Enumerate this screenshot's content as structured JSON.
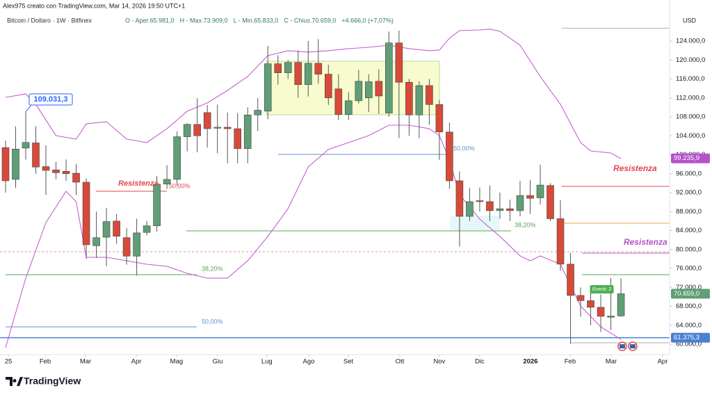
{
  "chart_data": {
    "type": "candlestick",
    "header": "Alex975 creato con TradingView.com, Mar 14, 2026 19:50 UTC+1",
    "symbol": "Bitcoin / Dollaro · 1W · Bitfinex",
    "ohlc": [
      "O - Aper.65.981,0",
      "H - Max.73.909,0",
      "L - Min.65.833,0",
      "C - Chius.70.659,0",
      "+4.666,0 (+7,07%)"
    ],
    "currency": "USD",
    "brand": "TradingView",
    "up_color": "#5f9e76",
    "down_color": "#d74a3a",
    "xlim": [
      -0.55,
      65.82
    ],
    "ylim": [
      57800,
      132660
    ],
    "grid": false,
    "xticks": [
      {
        "value": 0.28,
        "label": "25"
      },
      {
        "value": 3.93,
        "label": "Feb"
      },
      {
        "value": 7.93,
        "label": "Mar"
      },
      {
        "value": 12.96,
        "label": "Apr"
      },
      {
        "value": 16.95,
        "label": "Mag"
      },
      {
        "value": 21.02,
        "label": "Giu"
      },
      {
        "value": 25.9,
        "label": "Lug"
      },
      {
        "value": 30.05,
        "label": "Ago"
      },
      {
        "value": 33.98,
        "label": "Set"
      },
      {
        "value": 39.08,
        "label": "Ott"
      },
      {
        "value": 43.0,
        "label": "Nov"
      },
      {
        "value": 47.0,
        "label": "Dic"
      },
      {
        "value": 52.03,
        "label": "2026"
      },
      {
        "value": 55.96,
        "label": "Feb"
      },
      {
        "value": 60.03,
        "label": "Mar"
      },
      {
        "value": 65.13,
        "label": "Apr"
      }
    ],
    "yticks": [
      {
        "value": 124000,
        "label": "124.000,0"
      },
      {
        "value": 120000,
        "label": "120.000,0"
      },
      {
        "value": 116000,
        "label": "116.000,0"
      },
      {
        "value": 112000,
        "label": "112.000,0"
      },
      {
        "value": 108000,
        "label": "108.000,0"
      },
      {
        "value": 104000,
        "label": "104.000,0"
      },
      {
        "value": 100000,
        "label": "100.000,0"
      },
      {
        "value": 96000,
        "label": "96.000,0"
      },
      {
        "value": 92000,
        "label": "92.000,0"
      },
      {
        "value": 88000,
        "label": "88.000,0"
      },
      {
        "value": 84000,
        "label": "84.000,0"
      },
      {
        "value": 80000,
        "label": "80.000,0"
      },
      {
        "value": 76000,
        "label": "76.000,0"
      },
      {
        "value": 72000,
        "label": "72.000,0"
      },
      {
        "value": 68000,
        "label": "68.000,0"
      },
      {
        "value": 64000,
        "label": "64.000,0"
      },
      {
        "value": 60000,
        "label": "60.000,0"
      }
    ],
    "x": [
      0,
      1,
      2,
      3,
      4,
      5,
      6,
      7,
      8,
      9,
      10,
      11,
      12,
      13,
      14,
      15,
      16,
      17,
      18,
      19,
      20,
      21,
      22,
      23,
      24,
      25,
      26,
      27,
      28,
      29,
      30,
      31,
      32,
      33,
      34,
      35,
      36,
      37,
      38,
      39,
      40,
      41,
      42,
      43,
      44,
      45,
      46,
      47,
      48,
      49,
      50,
      51,
      52,
      53,
      54,
      55,
      56,
      57,
      58,
      59,
      60,
      61
    ],
    "open": [
      101500,
      94800,
      101400,
      102500,
      97500,
      96800,
      96500,
      96100,
      94200,
      80800,
      82600,
      86000,
      82500,
      78600,
      83600,
      85000,
      93800,
      94800,
      103800,
      106400,
      108900,
      105600,
      105800,
      105500,
      101300,
      108400,
      109200,
      119200,
      117300,
      119500,
      114800,
      119300,
      117000,
      113900,
      108500,
      111400,
      112000,
      115500,
      108800,
      123600,
      115300,
      108400,
      114600,
      110600,
      104800,
      94500,
      87000,
      90300,
      90100,
      88200,
      88600,
      88200,
      91400,
      90900,
      93500,
      86500,
      76900,
      70300,
      69200,
      67800,
      65700,
      65981
    ],
    "high": [
      103000,
      106000,
      109031.3,
      106000,
      102000,
      98500,
      99000,
      98000,
      95000,
      88000,
      88800,
      87500,
      84500,
      86500,
      86000,
      95500,
      97800,
      104900,
      106700,
      111900,
      110500,
      110600,
      108900,
      108800,
      110000,
      112000,
      123000,
      121000,
      120000,
      122000,
      124000,
      124400,
      119000,
      117000,
      113200,
      117900,
      117000,
      118000,
      126000,
      126200,
      116000,
      115500,
      116000,
      111500,
      106800,
      96500,
      93000,
      93100,
      93500,
      92000,
      90500,
      94500,
      94700,
      97900,
      94000,
      90400,
      79300,
      72000,
      71500,
      70500,
      74000,
      73909
    ],
    "low": [
      92000,
      93000,
      99000,
      96000,
      91500,
      94800,
      94500,
      91500,
      78000,
      78200,
      76500,
      81200,
      76800,
      74500,
      83000,
      83800,
      92800,
      93400,
      100700,
      100500,
      101500,
      100300,
      98200,
      98200,
      98200,
      105000,
      107500,
      114800,
      116000,
      112000,
      112300,
      115000,
      110500,
      107300,
      107300,
      110800,
      109000,
      108600,
      108000,
      103500,
      104000,
      103500,
      106300,
      98900,
      92800,
      80600,
      86000,
      88000,
      86000,
      86500,
      86000,
      87000,
      87500,
      89500,
      86000,
      75500,
      60100,
      65800,
      64000,
      62600,
      63000,
      65833
    ],
    "close": [
      94500,
      101200,
      102600,
      97400,
      96700,
      96200,
      96000,
      94200,
      81000,
      82500,
      85900,
      82800,
      78600,
      83500,
      85000,
      93800,
      94800,
      103800,
      106400,
      104000,
      105500,
      105800,
      105500,
      101300,
      108400,
      109400,
      119200,
      117300,
      119500,
      114800,
      119300,
      117000,
      112000,
      108500,
      111400,
      115500,
      115400,
      112400,
      123600,
      115300,
      108400,
      114600,
      110600,
      104800,
      94500,
      87000,
      90100,
      90100,
      88200,
      88600,
      88200,
      91400,
      90800,
      93600,
      86500,
      76900,
      70300,
      69200,
      67800,
      65900,
      65950,
      70659
    ],
    "bands": [
      {
        "color": "#c35fd0",
        "x": [
          0,
          2,
          3,
          5,
          7,
          8,
          10,
          12,
          14,
          16,
          18,
          20,
          22,
          24,
          26,
          28,
          30,
          32,
          34,
          36,
          38,
          40,
          42,
          43,
          44,
          45,
          47,
          48,
          49,
          51,
          53,
          55,
          57,
          58,
          60,
          61
        ],
        "values": [
          112110,
          112840,
          110640,
          104040,
          103300,
          106530,
          106970,
          103300,
          102570,
          105500,
          109170,
          110940,
          113580,
          116520,
          120920,
          121950,
          121660,
          121950,
          122390,
          122680,
          123120,
          122390,
          121950,
          122100,
          124590,
          126200,
          126350,
          126500,
          126060,
          123120,
          116520,
          110640,
          102570,
          100810,
          100370,
          99190
        ]
      },
      {
        "color": "#c35fd0",
        "x": [
          0,
          2,
          4,
          6,
          7,
          8,
          10,
          12,
          14,
          16,
          18,
          20,
          22,
          24,
          26,
          28,
          30,
          32,
          34,
          36,
          38,
          40,
          42,
          43,
          44,
          45,
          47,
          49,
          51,
          52,
          53,
          55,
          57,
          59,
          61
        ],
        "values": [
          59270,
          73950,
          85690,
          92290,
          90090,
          78350,
          78350,
          77620,
          76880,
          76440,
          74970,
          73950,
          73950,
          77620,
          82760,
          88630,
          97430,
          101100,
          102570,
          104040,
          106240,
          106240,
          105500,
          104040,
          98900,
          91560,
          86420,
          82760,
          78650,
          77620,
          78650,
          76880,
          68070,
          63670,
          61030
        ]
      }
    ],
    "zones": [
      {
        "from": 25.85,
        "to": 43.01,
        "top": 119740,
        "bottom": 108440,
        "color": "#f4f9b8",
        "border": "#b9dba6"
      },
      {
        "from": 44.11,
        "to": 48.93,
        "top": 87010,
        "bottom": 83930,
        "color": "#dcf4f6",
        "border": "#dcf4f6"
      }
    ],
    "levels": [
      {
        "value": 126700,
        "from": 55.14,
        "to": 65.82,
        "color": "#b0b0b0",
        "dash": false
      },
      {
        "value": 100070,
        "from": 27.02,
        "to": 44.25,
        "color": "#5b8fd8",
        "dash": false
      },
      {
        "value": 92300,
        "from": 8.96,
        "to": 15.99,
        "color": "#e0474c",
        "dash": false
      },
      {
        "value": 83930,
        "from": 17.92,
        "to": 50.11,
        "color": "#5aa45a",
        "dash": false
      },
      {
        "value": 74680,
        "from": 0,
        "to": 18.95,
        "color": "#5aa45a",
        "dash": false
      },
      {
        "value": 63670,
        "from": 0,
        "to": 18.95,
        "color": "#5b8fd8",
        "dash": false
      },
      {
        "value": 93320,
        "from": 55.14,
        "to": 65.82,
        "color": "#e0474c",
        "dash": false
      },
      {
        "value": 85540,
        "from": 55.14,
        "to": 65.82,
        "color": "#f0a040",
        "dash": false
      },
      {
        "value": 79230,
        "from": 57.13,
        "to": 65.82,
        "color": "#b552c9",
        "dash": false
      },
      {
        "value": 74680,
        "from": 57.13,
        "to": 65.82,
        "color": "#5aa45a",
        "dash": false
      },
      {
        "value": 79520,
        "from": -0.55,
        "to": 65.82,
        "color": "#e38aa8",
        "dash": true
      },
      {
        "value": 61375.3,
        "from": -0.55,
        "to": 65.82,
        "color": "#4a7fd4",
        "dash": false
      },
      {
        "value": 60300,
        "from": 55.96,
        "to": 65.82,
        "color": "#b0b0b0",
        "dash": false
      }
    ],
    "annotations": [
      {
        "text": "Resistenza",
        "x": 11.17,
        "y": 93908,
        "color": "#e0474c",
        "size": 11
      },
      {
        "text": "50,00%",
        "x": 16.2,
        "y": 93321,
        "color": "#e0474c",
        "size": 9
      },
      {
        "text": "50,00%",
        "x": 44.39,
        "y": 101248,
        "color": "#5b8fd8",
        "size": 9
      },
      {
        "text": "38,20%",
        "x": 50.45,
        "y": 85101,
        "color": "#5aa45a",
        "size": 9
      },
      {
        "text": "38,20%",
        "x": 19.44,
        "y": 75853,
        "color": "#5aa45a",
        "size": 9
      },
      {
        "text": "50,00%",
        "x": 19.44,
        "y": 64697,
        "color": "#5b8fd8",
        "size": 9
      },
      {
        "text": "Resistenza",
        "x": 60.24,
        "y": 96991,
        "color": "#e0474c",
        "size": 12
      },
      {
        "text": "Resistenza",
        "x": 61.27,
        "y": 81431,
        "color": "#b552c9",
        "size": 12
      }
    ],
    "price_labels": [
      {
        "value": 99235.9,
        "label": "99.235,9",
        "color": "#b552c9"
      },
      {
        "value": 70659.0,
        "label": "70.659,0",
        "color": "#5f9e76"
      },
      {
        "value": 61375.3,
        "label": "61.375,3",
        "color": "#4a7fd4"
      }
    ],
    "callout": {
      "value": 109031.3,
      "label": "109.031,3",
      "candle": 2
    },
    "event": {
      "label": "Eventi: 2",
      "x": 59.1,
      "value": 71596
    }
  }
}
